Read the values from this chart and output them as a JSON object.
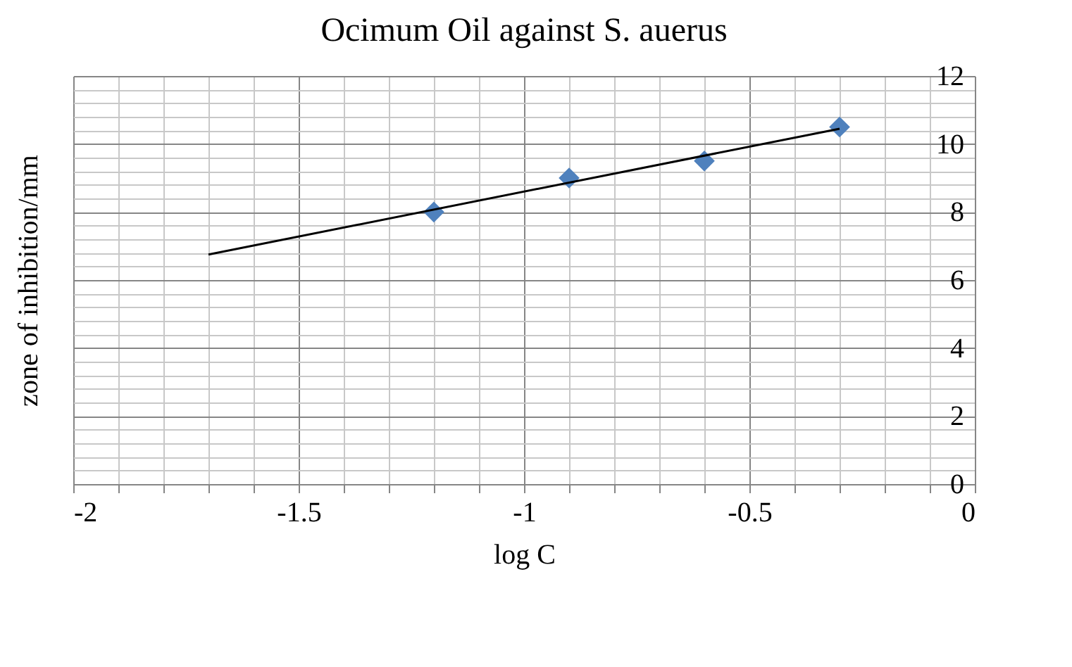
{
  "chart_data": {
    "type": "scatter",
    "title": "Ocimum Oil against S. auerus",
    "xlabel": "log C",
    "ylabel": "zone of inhibition/mm",
    "x": [
      -1.2,
      -0.9,
      -0.6,
      -0.3
    ],
    "series": [
      {
        "color": "#4f81bd",
        "marker": "diamond",
        "values": [
          8,
          9,
          9.5,
          10.5
        ]
      },
      {
        "type": "line",
        "color": "#000000",
        "x": [
          -1.7,
          -0.3
        ],
        "values": [
          6.75,
          10.45
        ]
      }
    ],
    "xlim": [
      -2,
      0
    ],
    "xticks": [
      -2,
      {
        "value": -1.9,
        "label": null
      },
      {
        "value": -1.8,
        "label": null
      },
      {
        "value": -1.7,
        "label": null
      },
      {
        "value": -1.6,
        "label": null
      },
      -1.5,
      {
        "value": -1.4,
        "label": null
      },
      {
        "value": -1.3,
        "label": null
      },
      {
        "value": -1.2,
        "label": null
      },
      {
        "value": -1.1,
        "label": null
      },
      -1,
      {
        "value": -0.9,
        "label": null
      },
      {
        "value": -0.8,
        "label": null
      },
      {
        "value": -0.7,
        "label": null
      },
      {
        "value": -0.6,
        "label": null
      },
      -0.5,
      {
        "value": -0.4,
        "label": null
      },
      {
        "value": -0.3,
        "label": null
      },
      {
        "value": -0.2,
        "label": null
      },
      {
        "value": -0.1,
        "label": null
      },
      0
    ],
    "ylim": [
      0,
      12
    ],
    "yticks": [
      0,
      {
        "value": 0.4,
        "label": null
      },
      {
        "value": 0.8,
        "label": null
      },
      {
        "value": 1.2,
        "label": null
      },
      {
        "value": 1.6,
        "label": null
      },
      2,
      {
        "value": 2.4,
        "label": null
      },
      {
        "value": 2.8,
        "label": null
      },
      {
        "value": 3.2,
        "label": null
      },
      {
        "value": 3.6,
        "label": null
      },
      4,
      {
        "value": 4.4,
        "label": null
      },
      {
        "value": 4.8,
        "label": null
      },
      {
        "value": 5.2,
        "label": null
      },
      {
        "value": 5.6,
        "label": null
      },
      6,
      {
        "value": 6.4,
        "label": null
      },
      {
        "value": 6.8,
        "label": null
      },
      {
        "value": 7.2,
        "label": null
      },
      {
        "value": 7.6,
        "label": null
      },
      8,
      {
        "value": 8.4,
        "label": null
      },
      {
        "value": 8.8,
        "label": null
      },
      {
        "value": 9.2,
        "label": null
      },
      {
        "value": 9.6,
        "label": null
      },
      10,
      {
        "value": 10.4,
        "label": null
      },
      {
        "value": 10.8,
        "label": null
      },
      {
        "value": 11.2,
        "label": null
      },
      {
        "value": 11.6,
        "label": null
      },
      12
    ],
    "grid": true
  }
}
